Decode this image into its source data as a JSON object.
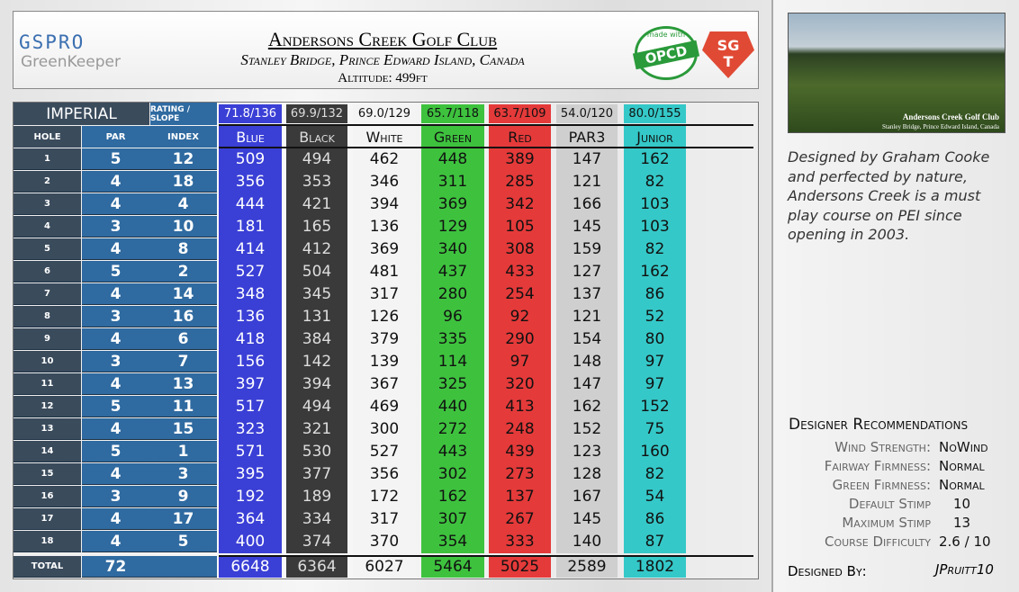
{
  "header": {
    "logo_top": "GSPRO",
    "logo_bottom": "GreenKeeper",
    "title": "Andersons Creek Golf Club",
    "subtitle": "Stanley Bridge, Prince Edward Island, Canada",
    "altitude": "Altitude: 499ft",
    "badge_top": "made with",
    "badge": "OPCD",
    "badge2_top": "SG",
    "badge2_bottom": "T"
  },
  "table": {
    "system": "Imperial",
    "rating_header": "RATING / SLOPE",
    "columns": [
      "HOLE",
      "PAR",
      "INDEX"
    ],
    "total_label": "TOTAL",
    "holes": [
      1,
      2,
      3,
      4,
      5,
      6,
      7,
      8,
      9,
      10,
      11,
      12,
      13,
      14,
      15,
      16,
      17,
      18
    ],
    "par": [
      5,
      4,
      4,
      3,
      4,
      5,
      4,
      3,
      4,
      3,
      4,
      5,
      4,
      5,
      4,
      3,
      4,
      4
    ],
    "par_total": 72,
    "index": [
      12,
      18,
      4,
      10,
      8,
      2,
      14,
      16,
      6,
      7,
      13,
      11,
      15,
      1,
      3,
      9,
      17,
      5
    ],
    "tees": [
      {
        "name": "Blue",
        "rating": "71.8/136",
        "yards": [
          509,
          356,
          444,
          181,
          414,
          527,
          348,
          136,
          418,
          156,
          397,
          517,
          323,
          571,
          395,
          192,
          364,
          400
        ],
        "total": 6648
      },
      {
        "name": "Black",
        "rating": "69.9/132",
        "yards": [
          494,
          353,
          421,
          165,
          412,
          504,
          345,
          131,
          384,
          142,
          394,
          494,
          321,
          530,
          377,
          189,
          334,
          374
        ],
        "total": 6364
      },
      {
        "name": "White",
        "rating": "69.0/129",
        "yards": [
          462,
          346,
          394,
          136,
          369,
          481,
          317,
          126,
          379,
          139,
          367,
          469,
          300,
          527,
          356,
          172,
          317,
          370
        ],
        "total": 6027
      },
      {
        "name": "Green",
        "rating": "65.7/118",
        "yards": [
          448,
          311,
          369,
          129,
          340,
          437,
          280,
          96,
          335,
          114,
          325,
          440,
          272,
          443,
          302,
          162,
          307,
          354
        ],
        "total": 5464
      },
      {
        "name": "Red",
        "rating": "63.7/109",
        "yards": [
          389,
          285,
          342,
          105,
          308,
          433,
          254,
          92,
          290,
          97,
          320,
          413,
          248,
          439,
          273,
          137,
          267,
          333
        ],
        "total": 5025
      },
      {
        "name": "PAR3",
        "rating": "54.0/120",
        "yards": [
          147,
          121,
          166,
          145,
          159,
          127,
          137,
          121,
          154,
          148,
          147,
          162,
          152,
          123,
          128,
          167,
          145,
          140
        ],
        "total": 2589
      },
      {
        "name": "Junior",
        "rating": "80.0/155",
        "yards": [
          162,
          82,
          103,
          103,
          82,
          162,
          86,
          52,
          80,
          97,
          97,
          152,
          75,
          160,
          82,
          54,
          86,
          87
        ],
        "total": 1802
      }
    ]
  },
  "photo": {
    "caption_title": "Andersons Creek Golf Club",
    "caption_sub": "Stanley Bridge, Prince Edward Island, Canada"
  },
  "description": "Designed by Graham Cooke and perfected by nature, Andersons Creek is a must play course on PEI since opening in 2003.",
  "recommendations": {
    "title": "Designer Recommendations",
    "items": [
      {
        "label": "Wind Strength:",
        "value": "NoWind"
      },
      {
        "label": "Fairway Firmness:",
        "value": "Normal"
      },
      {
        "label": "Green Firmness:",
        "value": "Normal"
      },
      {
        "label": "Default Stimp",
        "value": "10"
      },
      {
        "label": "Maximum Stimp",
        "value": "13"
      },
      {
        "label": "Course Difficulty",
        "value": "2.6 / 10"
      }
    ]
  },
  "designer": {
    "label": "Designed By:",
    "name": "JPruitt10"
  }
}
